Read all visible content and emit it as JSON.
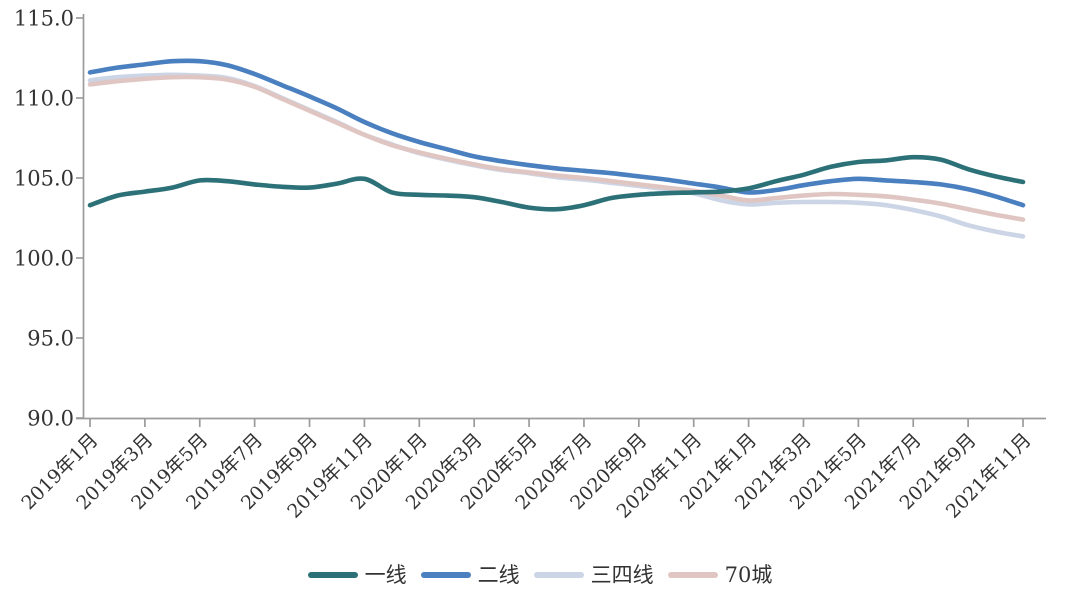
{
  "colors": {
    "text": "#333333",
    "axis": "#9b9b9b",
    "background": "#ffffff"
  },
  "chart_data": {
    "type": "line",
    "title": "",
    "xlabel": "",
    "ylabel": "",
    "grid": false,
    "legend_position": "bottom",
    "ylim": [
      90.0,
      115.0
    ],
    "y_ticks": [
      {
        "label": "115.0",
        "value": 115.0
      },
      {
        "label": "110.0",
        "value": 110.0
      },
      {
        "label": "105.0",
        "value": 105.0
      },
      {
        "label": "100.0",
        "value": 100.0
      },
      {
        "label": "95.0",
        "value": 95.0
      },
      {
        "label": "90.0",
        "value": 90.0
      }
    ],
    "n_points": 35,
    "x_tick_months": [
      0,
      2,
      4,
      6,
      8,
      10,
      12,
      14,
      16,
      18,
      20,
      22,
      24,
      26,
      28,
      30,
      32,
      34
    ],
    "x_tick_labels": [
      "2019年1月",
      "2019年3月",
      "2019年5月",
      "2019年7月",
      "2019年9月",
      "2019年11月",
      "2020年1月",
      "2020年3月",
      "2020年5月",
      "2020年7月",
      "2020年9月",
      "2020年11月",
      "2021年1月",
      "2021年3月",
      "2021年5月",
      "2021年7月",
      "2021年9月",
      "2021年11月"
    ],
    "legend_order": [
      "一线",
      "二线",
      "三四线",
      "70城"
    ],
    "series": [
      {
        "id": "sansixian",
        "name": "三四线",
        "color": "#ccd5e5",
        "values": [
          111.1,
          111.3,
          111.4,
          111.45,
          111.4,
          111.25,
          110.75,
          110.0,
          109.25,
          108.5,
          107.7,
          107.1,
          106.55,
          106.15,
          105.8,
          105.5,
          105.3,
          105.05,
          104.9,
          104.7,
          104.5,
          104.3,
          104.05,
          103.6,
          103.35,
          103.45,
          103.5,
          103.5,
          103.45,
          103.3,
          103.0,
          102.6,
          102.05,
          101.65,
          101.35
        ]
      },
      {
        "id": "qishicheng",
        "name": "70城",
        "color": "#e0c6c3",
        "values": [
          110.85,
          111.05,
          111.2,
          111.3,
          111.3,
          111.15,
          110.7,
          109.95,
          109.2,
          108.45,
          107.7,
          107.05,
          106.6,
          106.2,
          105.85,
          105.55,
          105.35,
          105.15,
          105.0,
          104.8,
          104.6,
          104.4,
          104.2,
          103.9,
          103.6,
          103.75,
          103.9,
          104.0,
          103.95,
          103.85,
          103.65,
          103.4,
          103.05,
          102.7,
          102.4
        ]
      },
      {
        "id": "erxian",
        "name": "二线",
        "color": "#4a7fc0",
        "values": [
          111.6,
          111.9,
          112.1,
          112.3,
          112.3,
          112.05,
          111.5,
          110.8,
          110.1,
          109.35,
          108.5,
          107.8,
          107.25,
          106.8,
          106.35,
          106.05,
          105.8,
          105.6,
          105.45,
          105.3,
          105.1,
          104.9,
          104.65,
          104.4,
          104.1,
          104.25,
          104.55,
          104.8,
          104.95,
          104.85,
          104.75,
          104.6,
          104.3,
          103.85,
          103.3
        ]
      },
      {
        "id": "yixian",
        "name": "一线",
        "color": "#2c7177",
        "values": [
          103.3,
          103.9,
          104.15,
          104.4,
          104.85,
          104.8,
          104.6,
          104.45,
          104.4,
          104.65,
          104.95,
          104.1,
          103.95,
          103.9,
          103.8,
          103.5,
          103.15,
          103.05,
          103.3,
          103.75,
          103.95,
          104.05,
          104.1,
          104.15,
          104.35,
          104.8,
          105.2,
          105.7,
          106.0,
          106.1,
          106.3,
          106.15,
          105.55,
          105.1,
          104.75
        ]
      }
    ]
  }
}
